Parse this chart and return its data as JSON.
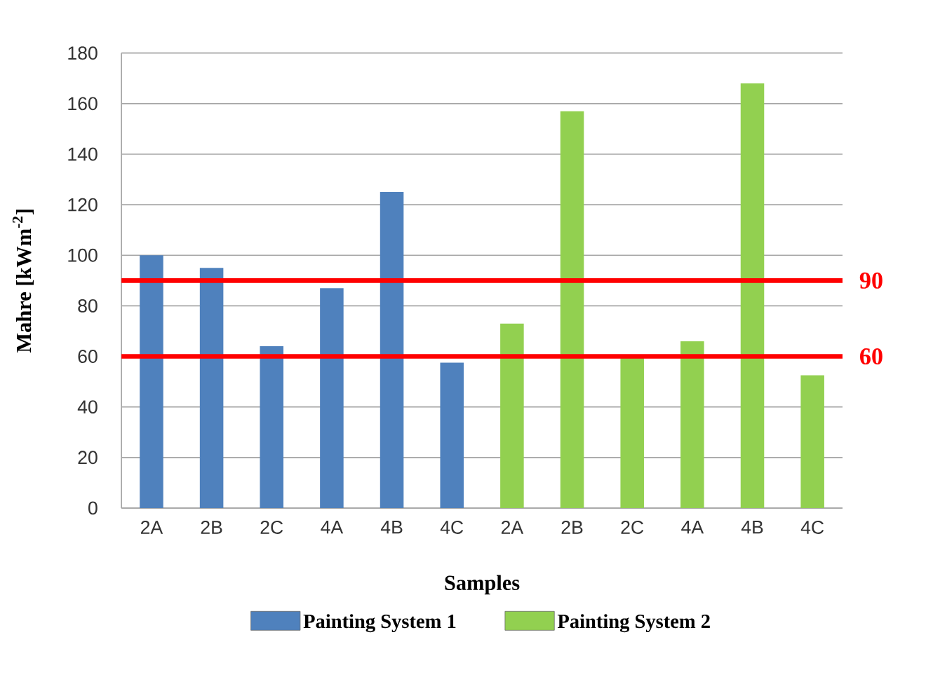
{
  "chart_data": {
    "type": "bar",
    "xlabel": "Samples",
    "ylabel": "Mahre [kWm$^{-2}$]",
    "categories": [
      "2A",
      "2B",
      "2C",
      "4A",
      "4B",
      "4C",
      "2A",
      "2B",
      "2C",
      "4A",
      "4B",
      "4C"
    ],
    "series": [
      {
        "name": "Painting System 1",
        "color": "#4f81bd",
        "values": [
          100,
          95,
          64,
          87,
          125,
          57.5,
          null,
          null,
          null,
          null,
          null,
          null
        ]
      },
      {
        "name": "Painting System 2",
        "color": "#92d050",
        "values": [
          null,
          null,
          null,
          null,
          null,
          null,
          73,
          157,
          60,
          66,
          168,
          52.5
        ]
      }
    ],
    "ylim": [
      0,
      180
    ],
    "yticks": [
      0,
      20,
      40,
      60,
      80,
      100,
      120,
      140,
      160,
      180
    ],
    "grid": "y",
    "legend": "bottom",
    "ref_lines": [
      {
        "axis": "y",
        "value": 90,
        "label": "90",
        "color": "#ff0000"
      },
      {
        "axis": "y",
        "value": 60,
        "label": "60",
        "color": "#ff0000"
      }
    ]
  }
}
